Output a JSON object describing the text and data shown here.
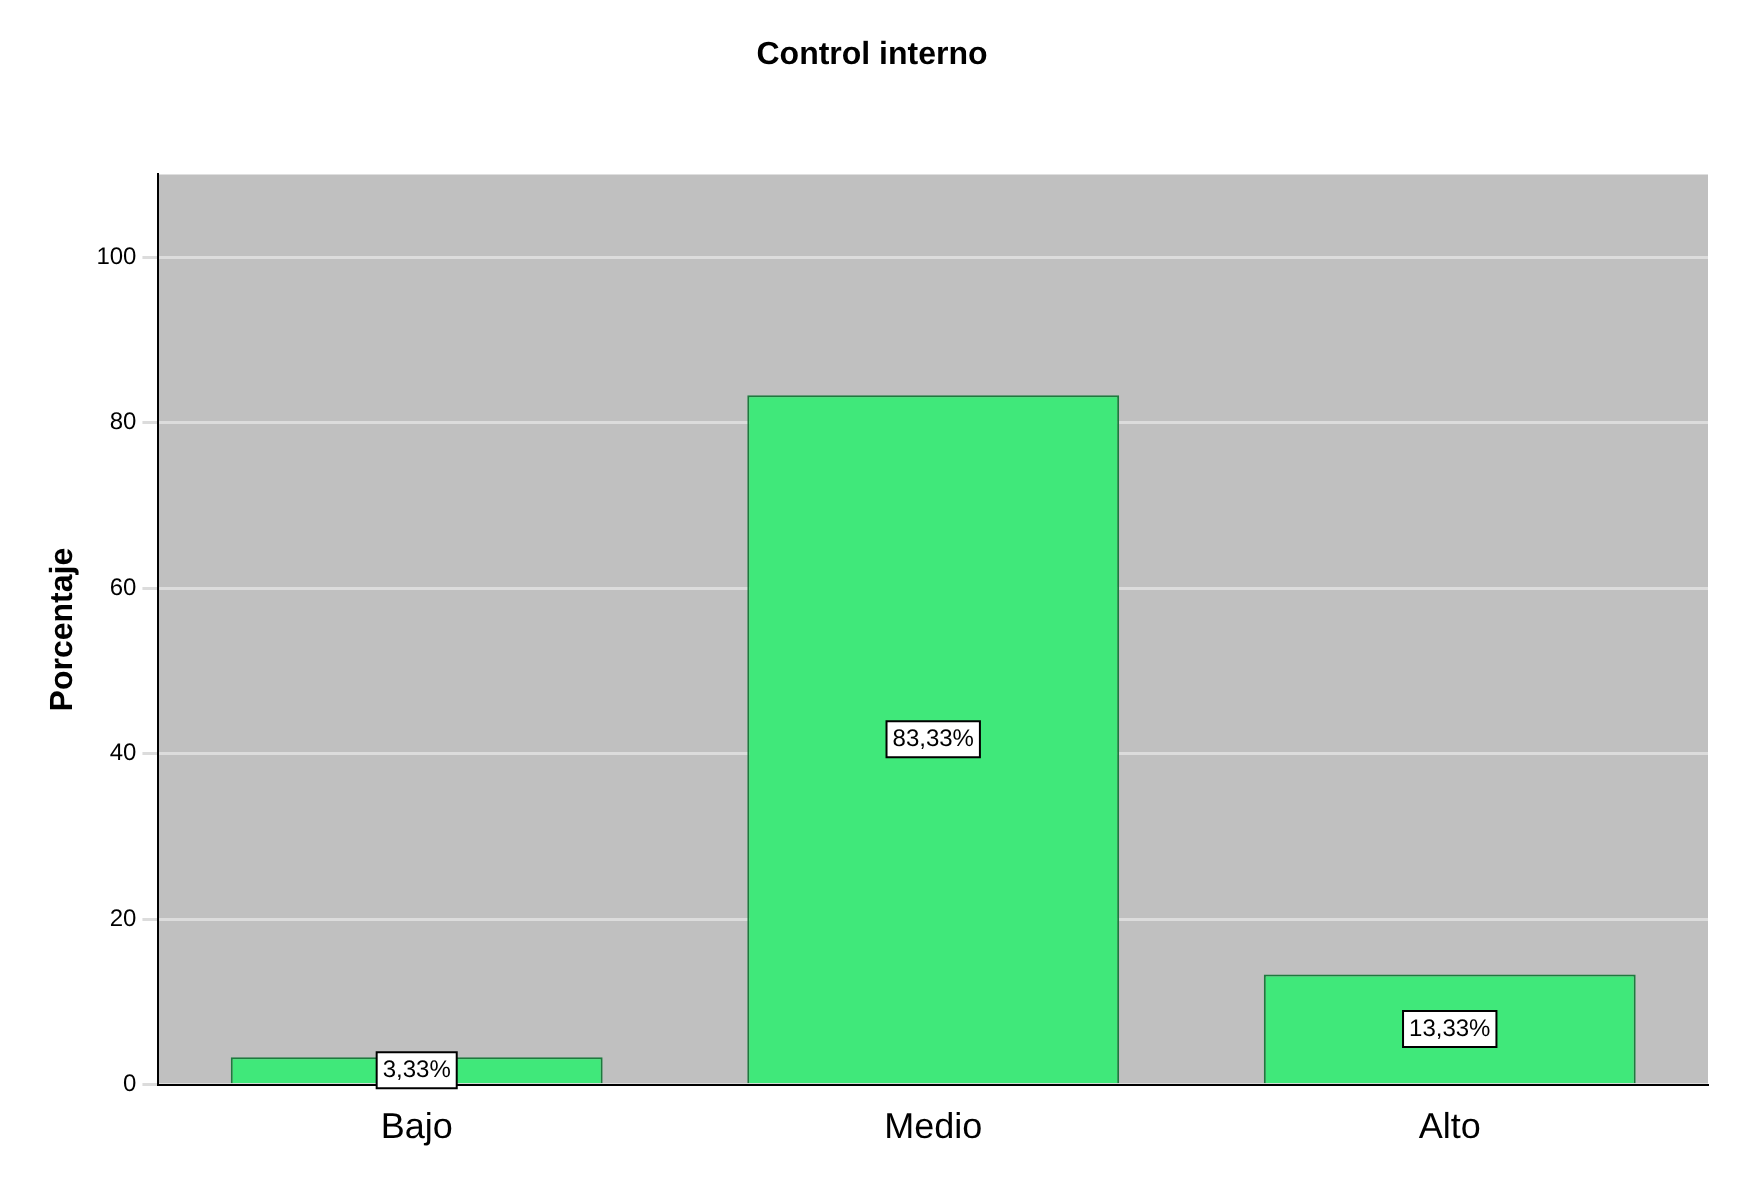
{
  "chart_data": {
    "type": "bar",
    "title": "Control interno",
    "ylabel": "Porcentaje",
    "categories": [
      "Bajo",
      "Medio",
      "Alto"
    ],
    "values": [
      3.33,
      83.33,
      13.33
    ],
    "value_labels": [
      "3,33%",
      "83,33%",
      "13,33%"
    ],
    "color": "#40e87a",
    "ylim": [
      0,
      110
    ],
    "yticks": [
      0,
      20,
      40,
      60,
      80,
      100
    ],
    "grid": "y",
    "legend": false
  }
}
